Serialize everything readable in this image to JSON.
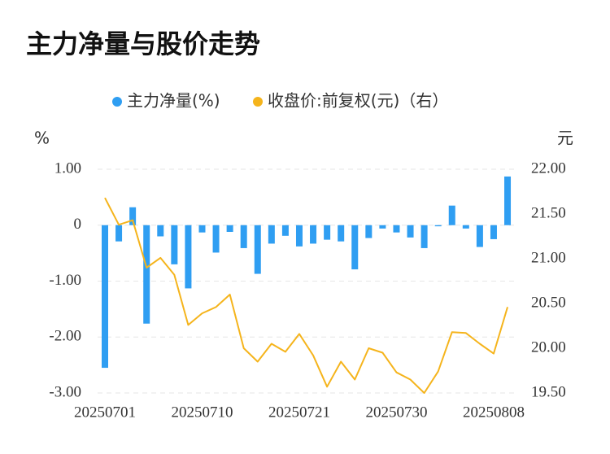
{
  "chart_data": {
    "type": "bar-line",
    "title": "主力净量与股价走势",
    "y_unit": "%",
    "y2_unit": "元",
    "categories": [
      "20250701",
      null,
      null,
      null,
      null,
      null,
      null,
      "20250710",
      null,
      null,
      null,
      null,
      null,
      null,
      "20250721",
      null,
      null,
      null,
      null,
      null,
      null,
      "20250730",
      null,
      null,
      null,
      null,
      null,
      null,
      "20250808",
      null
    ],
    "series": [
      {
        "name": "主力净量(%)",
        "color": "#2f9ef2",
        "type": "bar",
        "values": [
          -2.55,
          -0.29,
          0.32,
          -1.76,
          -0.2,
          -0.7,
          -1.13,
          -0.13,
          -0.49,
          -0.12,
          -0.41,
          -0.87,
          -0.33,
          -0.19,
          -0.38,
          -0.33,
          -0.26,
          -0.29,
          -0.79,
          -0.23,
          -0.06,
          -0.13,
          -0.22,
          -0.41,
          -0.02,
          0.35,
          -0.06,
          -0.39,
          -0.25,
          0.87
        ]
      },
      {
        "name": "收盘价:前复权(元)（右）",
        "color": "#f5b41c",
        "type": "line",
        "axis": "y2",
        "values": [
          21.68,
          21.38,
          21.43,
          20.9,
          21.01,
          20.82,
          20.26,
          20.39,
          20.46,
          20.6,
          20.0,
          19.85,
          20.05,
          19.96,
          20.16,
          19.92,
          19.57,
          19.85,
          19.65,
          20.0,
          19.95,
          19.73,
          19.65,
          19.5,
          19.74,
          20.18,
          20.17,
          20.05,
          19.94,
          20.46
        ]
      }
    ],
    "ylim": [
      -3,
      1
    ],
    "yticks": [
      {
        "value": 1,
        "label": "1.00"
      },
      0,
      {
        "value": -1,
        "label": "-1.00"
      },
      {
        "value": -2,
        "label": "-2.00"
      },
      {
        "value": -3,
        "label": "-3.00"
      }
    ],
    "y2lim": [
      19.5,
      22
    ],
    "y2ticks": [
      {
        "value": 22,
        "label": "22.00"
      },
      {
        "value": 21.5,
        "label": "21.50"
      },
      {
        "value": 21,
        "label": "21.00"
      },
      {
        "value": 20.5,
        "label": "20.50"
      },
      {
        "value": 20,
        "label": "20.00"
      },
      {
        "value": 19.5,
        "label": "19.50"
      }
    ],
    "grid": true
  }
}
